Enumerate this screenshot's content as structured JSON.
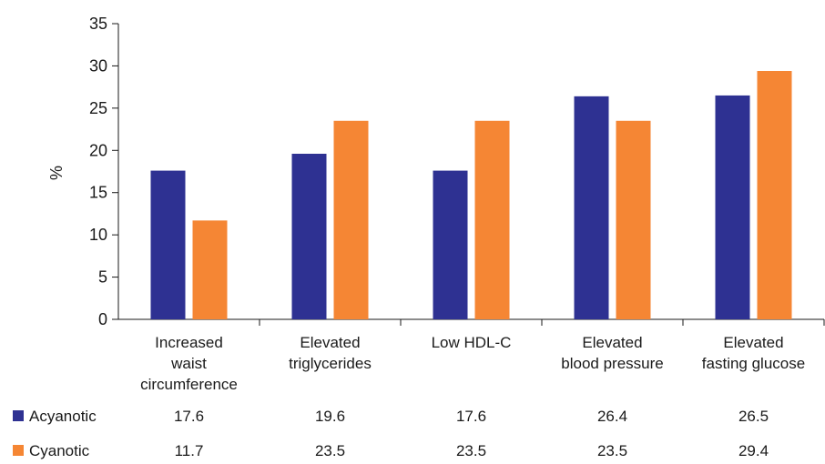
{
  "chart_data": {
    "type": "bar",
    "ylabel": "%",
    "ylim": [
      0,
      35
    ],
    "yticks": [
      0,
      5,
      10,
      15,
      20,
      25,
      30,
      35
    ],
    "categories": [
      [
        "Increased",
        "waist",
        "circumference"
      ],
      [
        "Elevated",
        "triglycerides"
      ],
      [
        "Low HDL-C"
      ],
      [
        "Elevated",
        "blood pressure"
      ],
      [
        "Elevated",
        "fasting glucose"
      ]
    ],
    "series": [
      {
        "name": "Acyanotic",
        "color": "#2e3192",
        "values": [
          17.6,
          19.6,
          17.6,
          26.4,
          26.5
        ],
        "labels": [
          "17.6",
          "19.6",
          "17.6",
          "26.4",
          "26.5"
        ]
      },
      {
        "name": "Cyanotic",
        "color": "#f58634",
        "values": [
          11.7,
          23.5,
          23.5,
          23.5,
          29.4
        ],
        "labels": [
          "11.7",
          "23.5",
          "23.5",
          "23.5",
          "29.4"
        ]
      }
    ],
    "grid": false,
    "legend": "bottom-left data table"
  }
}
